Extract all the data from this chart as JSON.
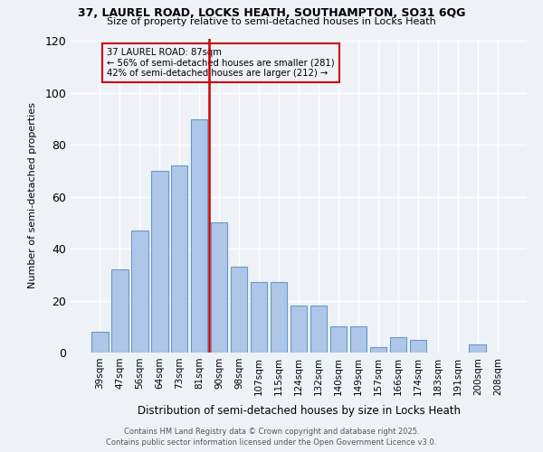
{
  "title1": "37, LAUREL ROAD, LOCKS HEATH, SOUTHAMPTON, SO31 6QG",
  "title2": "Size of property relative to semi-detached houses in Locks Heath",
  "xlabel": "Distribution of semi-detached houses by size in Locks Heath",
  "ylabel": "Number of semi-detached properties",
  "categories": [
    "39sqm",
    "47sqm",
    "56sqm",
    "64sqm",
    "73sqm",
    "81sqm",
    "90sqm",
    "98sqm",
    "107sqm",
    "115sqm",
    "124sqm",
    "132sqm",
    "140sqm",
    "149sqm",
    "157sqm",
    "166sqm",
    "174sqm",
    "183sqm",
    "191sqm",
    "200sqm",
    "208sqm"
  ],
  "values": [
    8,
    32,
    47,
    70,
    72,
    90,
    50,
    33,
    27,
    27,
    18,
    18,
    10,
    10,
    2,
    6,
    5,
    0,
    0,
    3,
    0
  ],
  "bar_color": "#aec6e8",
  "bar_edge_color": "#6699cc",
  "vline_x_idx": 6,
  "vline_label": "37 LAUREL ROAD: 87sqm",
  "annotation_line1": "← 56% of semi-detached houses are smaller (281)",
  "annotation_line2": "42% of semi-detached houses are larger (212) →",
  "box_color": "#cc0000",
  "ylim": [
    0,
    121
  ],
  "yticks": [
    0,
    20,
    40,
    60,
    80,
    100,
    120
  ],
  "footer1": "Contains HM Land Registry data © Crown copyright and database right 2025.",
  "footer2": "Contains public sector information licensed under the Open Government Licence v3.0.",
  "bg_color": "#eef2f7"
}
